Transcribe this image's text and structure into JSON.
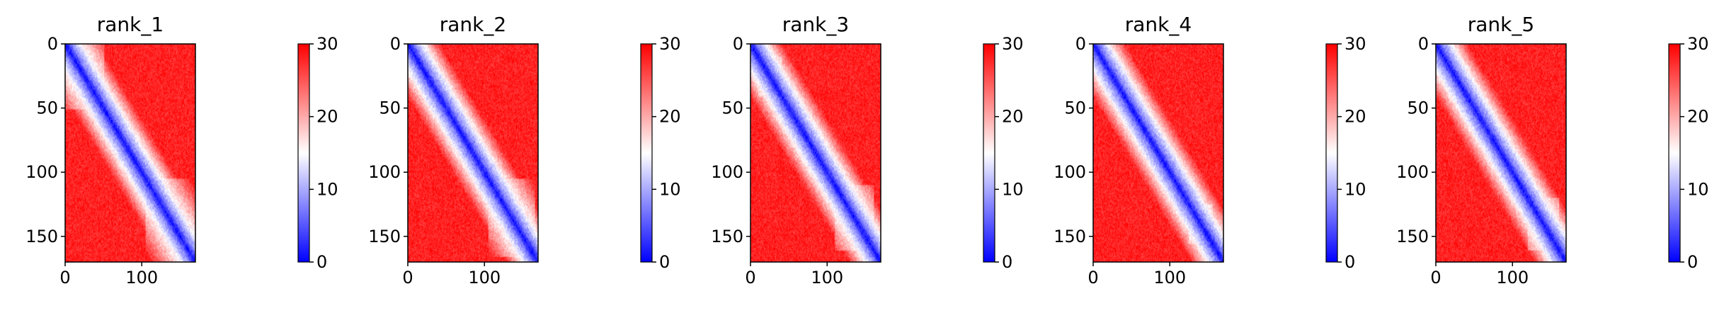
{
  "chart_data": {
    "type": "heatmap",
    "colormap": {
      "name": "bwr",
      "low": "#0000ff",
      "mid": "#ffffff",
      "high": "#ff0000"
    },
    "vmin": 0,
    "vmax": 30,
    "n_residues": 170,
    "x_ticks": [
      0,
      100
    ],
    "y_ticks": [
      0,
      50,
      100,
      150
    ],
    "colorbar_ticks": [
      0,
      10,
      20,
      30
    ],
    "panels": [
      {
        "title": "rank_1",
        "domains": [
          [
            0,
            50,
            60
          ],
          [
            105,
            170,
            55
          ]
        ],
        "diag_width": 5
      },
      {
        "title": "rank_2",
        "domains": [
          [
            15,
            35,
            30
          ],
          [
            105,
            165,
            55
          ]
        ],
        "diag_width": 5
      },
      {
        "title": "rank_3",
        "domains": [
          [
            10,
            40,
            45
          ],
          [
            110,
            160,
            60
          ]
        ],
        "diag_width": 5
      },
      {
        "title": "rank_4",
        "domains": [
          [
            15,
            40,
            50
          ],
          [
            90,
            110,
            40
          ],
          [
            125,
            155,
            50
          ]
        ],
        "diag_width": 5
      },
      {
        "title": "rank_5",
        "domains": [
          [
            15,
            40,
            50
          ],
          [
            120,
            160,
            55
          ]
        ],
        "diag_width": 5
      }
    ]
  }
}
